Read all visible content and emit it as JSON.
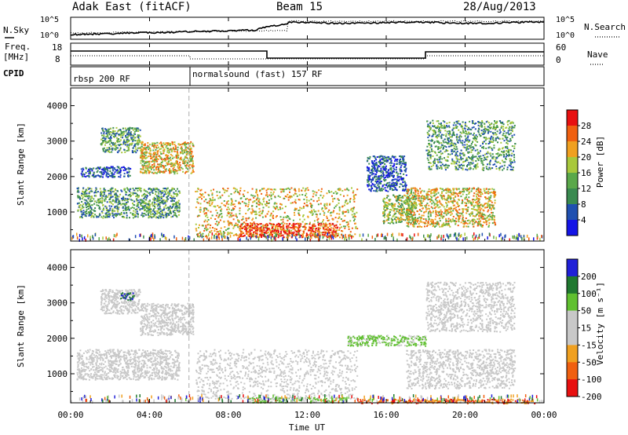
{
  "header": {
    "station": "Adak East (fitACF)",
    "beam": "Beam 15",
    "date": "28/Aug/2013"
  },
  "top_panels": {
    "nsky_label": "N.Sky",
    "nsky_ticks": [
      "10^5",
      "10^0"
    ],
    "nsearch_label": "N.Search",
    "nsearch_ticks": [
      "10^5",
      "10^0"
    ],
    "freq_label": "Freq.",
    "freq_unit": "[MHz]",
    "freq_ticks": [
      "18",
      "8"
    ],
    "nave_label": "Nave",
    "nave_ticks": [
      "60",
      "0"
    ],
    "cpid_label": "CPID",
    "cpid_segments": [
      {
        "label": "rbsp 200 RF",
        "start_hour": 0
      },
      {
        "label": "normalsound (fast) 157 RF",
        "start_hour": 6
      }
    ]
  },
  "colors": {
    "scale_power": [
      "#1414e6",
      "#2050b0",
      "#3a8a50",
      "#5aa84a",
      "#a8c83c",
      "#f0a020",
      "#f06010",
      "#e81010"
    ],
    "scale_velocity": [
      "#2020d8",
      "#207830",
      "#60c030",
      "#c8c8c8",
      "#c8c8c8",
      "#f0a020",
      "#f06010",
      "#e81010"
    ]
  },
  "chart_data": [
    {
      "type": "heatmap",
      "title": "",
      "xlabel": "",
      "ylabel": "Slant Range [km]",
      "xlim": [
        0,
        24
      ],
      "ylim": [
        180,
        4500
      ],
      "x_ticks": [
        "00:00",
        "04:00",
        "08:00",
        "12:00",
        "16:00",
        "20:00",
        "00:00"
      ],
      "y_ticks": [
        "1000",
        "2000",
        "3000",
        "4000"
      ],
      "colorbar_label": "Power [dB]",
      "colorbar_ticks": [
        "4",
        "8",
        "12",
        "16",
        "20",
        "24",
        "28"
      ],
      "scatter_regions": [
        {
          "hours": [
            0.3,
            5.5
          ],
          "range_km": [
            850,
            1700
          ],
          "level": "low-mid"
        },
        {
          "hours": [
            0.5,
            3.0
          ],
          "range_km": [
            2000,
            2300
          ],
          "level": "low"
        },
        {
          "hours": [
            1.5,
            3.5
          ],
          "range_km": [
            2700,
            3400
          ],
          "level": "low-mid"
        },
        {
          "hours": [
            3.5,
            6.2
          ],
          "range_km": [
            2100,
            3000
          ],
          "level": "mid-high"
        },
        {
          "hours": [
            6.3,
            14.5
          ],
          "range_km": [
            300,
            1700
          ],
          "level": "mid-high"
        },
        {
          "hours": [
            8.5,
            13.5
          ],
          "range_km": [
            300,
            700
          ],
          "level": "high"
        },
        {
          "hours": [
            15.0,
            17.0
          ],
          "range_km": [
            1600,
            2600
          ],
          "level": "low"
        },
        {
          "hours": [
            15.8,
            17.5
          ],
          "range_km": [
            700,
            1500
          ],
          "level": "mid"
        },
        {
          "hours": [
            17.0,
            21.5
          ],
          "range_km": [
            600,
            1700
          ],
          "level": "mid-high"
        },
        {
          "hours": [
            18.0,
            22.5
          ],
          "range_km": [
            2200,
            3600
          ],
          "level": "low-mid"
        }
      ]
    },
    {
      "type": "heatmap",
      "title": "",
      "xlabel": "Time UT",
      "ylabel": "Slant Range [km]",
      "xlim": [
        0,
        24
      ],
      "ylim": [
        180,
        4500
      ],
      "x_ticks": [
        "00:00",
        "04:00",
        "08:00",
        "12:00",
        "16:00",
        "20:00",
        "00:00"
      ],
      "y_ticks": [
        "1000",
        "2000",
        "3000",
        "4000"
      ],
      "colorbar_label": "Velocity [m s⁻¹]",
      "colorbar_ticks": [
        "200",
        "100",
        "50",
        "15",
        "-15",
        "-50",
        "-100",
        "-200"
      ],
      "scatter_regions": [
        {
          "hours": [
            0.3,
            5.5
          ],
          "range_km": [
            850,
            1700
          ],
          "level": "near-zero"
        },
        {
          "hours": [
            1.5,
            3.5
          ],
          "range_km": [
            2700,
            3400
          ],
          "level": "near-zero"
        },
        {
          "hours": [
            2.5,
            3.2
          ],
          "range_km": [
            3100,
            3300
          ],
          "level": "toward"
        },
        {
          "hours": [
            3.5,
            6.2
          ],
          "range_km": [
            2100,
            3000
          ],
          "level": "near-zero"
        },
        {
          "hours": [
            6.3,
            14.5
          ],
          "range_km": [
            300,
            1700
          ],
          "level": "near-zero"
        },
        {
          "hours": [
            9.0,
            14.0
          ],
          "range_km": [
            200,
            350
          ],
          "level": "slow-toward"
        },
        {
          "hours": [
            14.0,
            18.0
          ],
          "range_km": [
            1800,
            2100
          ],
          "level": "slow-toward"
        },
        {
          "hours": [
            14.5,
            23.5
          ],
          "range_km": [
            180,
            300
          ],
          "level": "away"
        },
        {
          "hours": [
            17.0,
            22.5
          ],
          "range_km": [
            600,
            1700
          ],
          "level": "near-zero"
        },
        {
          "hours": [
            18.0,
            22.5
          ],
          "range_km": [
            2200,
            3600
          ],
          "level": "near-zero"
        }
      ]
    }
  ]
}
